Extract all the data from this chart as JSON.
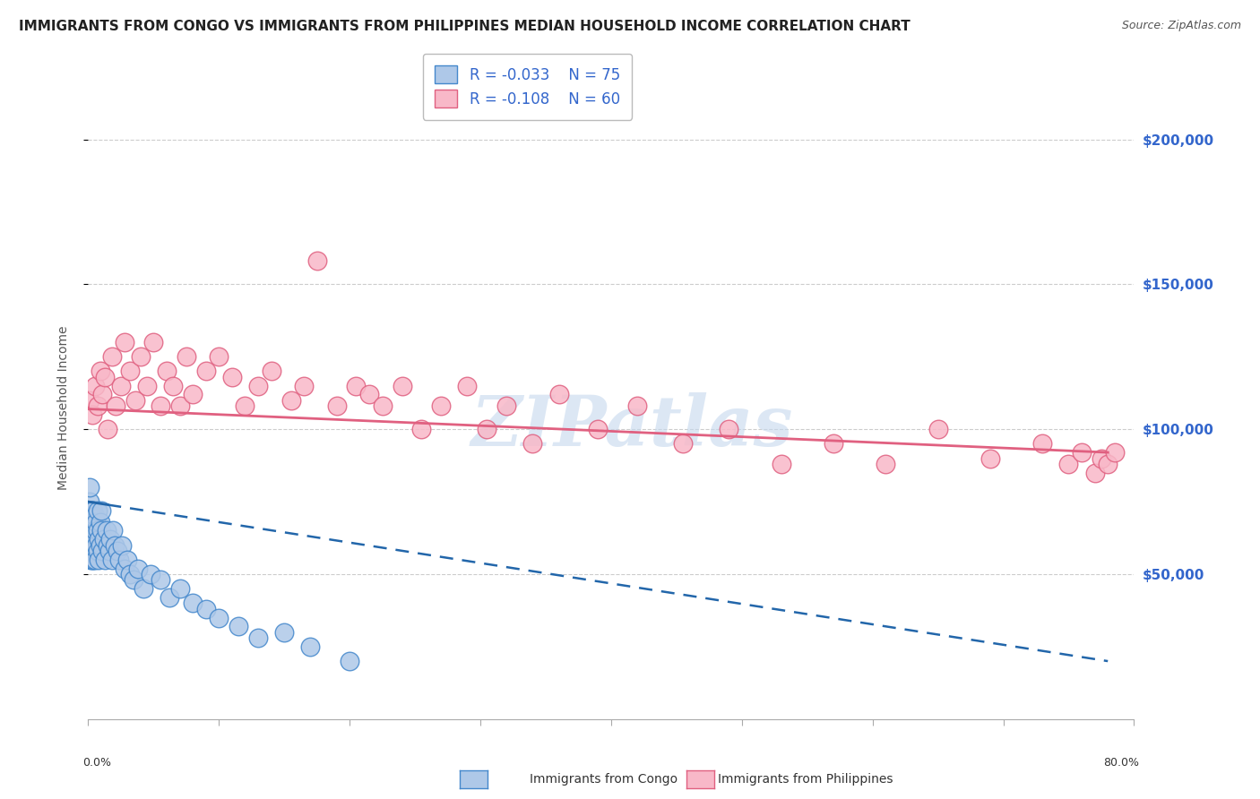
{
  "title": "IMMIGRANTS FROM CONGO VS IMMIGRANTS FROM PHILIPPINES MEDIAN HOUSEHOLD INCOME CORRELATION CHART",
  "source": "Source: ZipAtlas.com",
  "ylabel": "Median Household Income",
  "y_ticks": [
    50000,
    100000,
    150000,
    200000
  ],
  "y_tick_labels": [
    "$50,000",
    "$100,000",
    "$150,000",
    "$200,000"
  ],
  "watermark": "ZIPatlas",
  "legend_r1": "-0.033",
  "legend_n1": "75",
  "legend_r2": "-0.108",
  "legend_n2": "60",
  "congo_color": "#aec8e8",
  "congo_edge_color": "#4488cc",
  "philippines_color": "#f8b8c8",
  "philippines_edge_color": "#e06080",
  "congo_line_color": "#2266aa",
  "philippines_line_color": "#e06080",
  "background_color": "#ffffff",
  "grid_color": "#cccccc",
  "title_fontsize": 11,
  "tick_label_color": "#3366cc",
  "xlim": [
    0,
    0.8
  ],
  "ylim": [
    0,
    215000
  ],
  "congo_scatter_x": [
    0.001,
    0.001,
    0.001,
    0.001,
    0.001,
    0.001,
    0.001,
    0.001,
    0.002,
    0.002,
    0.002,
    0.002,
    0.002,
    0.002,
    0.002,
    0.003,
    0.003,
    0.003,
    0.003,
    0.003,
    0.003,
    0.003,
    0.004,
    0.004,
    0.004,
    0.004,
    0.004,
    0.004,
    0.005,
    0.005,
    0.005,
    0.005,
    0.005,
    0.006,
    0.006,
    0.007,
    0.007,
    0.007,
    0.008,
    0.008,
    0.009,
    0.009,
    0.01,
    0.01,
    0.011,
    0.012,
    0.013,
    0.014,
    0.015,
    0.016,
    0.017,
    0.018,
    0.019,
    0.02,
    0.022,
    0.024,
    0.026,
    0.028,
    0.03,
    0.032,
    0.035,
    0.038,
    0.042,
    0.048,
    0.055,
    0.062,
    0.07,
    0.08,
    0.09,
    0.1,
    0.115,
    0.13,
    0.15,
    0.17,
    0.2
  ],
  "congo_scatter_y": [
    75000,
    68000,
    72000,
    65000,
    80000,
    70000,
    62000,
    58000,
    72000,
    65000,
    60000,
    68000,
    55000,
    70000,
    62000,
    65000,
    72000,
    60000,
    68000,
    55000,
    62000,
    58000,
    70000,
    65000,
    60000,
    72000,
    55000,
    68000,
    62000,
    58000,
    70000,
    65000,
    55000,
    68000,
    60000,
    72000,
    65000,
    58000,
    62000,
    55000,
    68000,
    60000,
    65000,
    72000,
    58000,
    62000,
    55000,
    65000,
    60000,
    58000,
    62000,
    55000,
    65000,
    60000,
    58000,
    55000,
    60000,
    52000,
    55000,
    50000,
    48000,
    52000,
    45000,
    50000,
    48000,
    42000,
    45000,
    40000,
    38000,
    35000,
    32000,
    28000,
    30000,
    25000,
    20000
  ],
  "philippines_scatter_x": [
    0.001,
    0.003,
    0.005,
    0.007,
    0.009,
    0.011,
    0.013,
    0.015,
    0.018,
    0.021,
    0.025,
    0.028,
    0.032,
    0.036,
    0.04,
    0.045,
    0.05,
    0.055,
    0.06,
    0.065,
    0.07,
    0.075,
    0.08,
    0.09,
    0.1,
    0.11,
    0.12,
    0.13,
    0.14,
    0.155,
    0.165,
    0.175,
    0.19,
    0.205,
    0.215,
    0.225,
    0.24,
    0.255,
    0.27,
    0.29,
    0.305,
    0.32,
    0.34,
    0.36,
    0.39,
    0.42,
    0.455,
    0.49,
    0.53,
    0.57,
    0.61,
    0.65,
    0.69,
    0.73,
    0.75,
    0.76,
    0.77,
    0.775,
    0.78,
    0.785
  ],
  "philippines_scatter_y": [
    110000,
    105000,
    115000,
    108000,
    120000,
    112000,
    118000,
    100000,
    125000,
    108000,
    115000,
    130000,
    120000,
    110000,
    125000,
    115000,
    130000,
    108000,
    120000,
    115000,
    108000,
    125000,
    112000,
    120000,
    125000,
    118000,
    108000,
    115000,
    120000,
    110000,
    115000,
    158000,
    108000,
    115000,
    112000,
    108000,
    115000,
    100000,
    108000,
    115000,
    100000,
    108000,
    95000,
    112000,
    100000,
    108000,
    95000,
    100000,
    88000,
    95000,
    88000,
    100000,
    90000,
    95000,
    88000,
    92000,
    85000,
    90000,
    88000,
    92000
  ]
}
